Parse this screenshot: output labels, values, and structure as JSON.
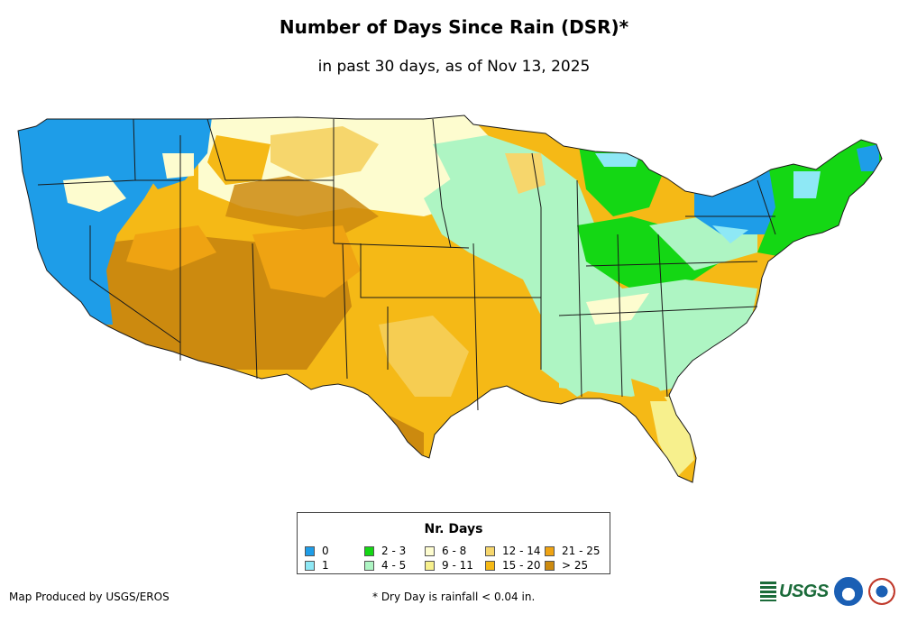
{
  "title": "Number of Days Since Rain (DSR)*",
  "subtitle": "in past 30 days, as of Nov 13, 2025",
  "legend": {
    "title": "Nr. Days",
    "items": [
      {
        "label": "0",
        "color": "#1e9de8"
      },
      {
        "label": "1",
        "color": "#8ee8f5"
      },
      {
        "label": "2 - 3",
        "color": "#14d714"
      },
      {
        "label": "4 - 5",
        "color": "#aef5c3"
      },
      {
        "label": "6 - 8",
        "color": "#fdfccf"
      },
      {
        "label": "9 - 11",
        "color": "#f7f08d"
      },
      {
        "label": "12 - 14",
        "color": "#f6d66c"
      },
      {
        "label": "15 - 20",
        "color": "#f5b916"
      },
      {
        "label": "21 - 25",
        "color": "#efa312"
      },
      {
        "label": "> 25",
        "color": "#cc8a0f"
      }
    ]
  },
  "footer": {
    "credit": "Map Produced by USGS/EROS",
    "note": "* Dry Day is rainfall < 0.04 in."
  },
  "logos": {
    "usgs": "USGS",
    "usgs_colors": {
      "green": "#1b6b3a"
    },
    "noaa_color": "#1a5fb4",
    "nws_color": "#c0392b"
  }
}
